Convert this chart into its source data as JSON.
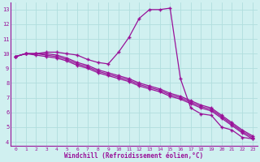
{
  "x": [
    0,
    1,
    2,
    3,
    4,
    5,
    6,
    7,
    8,
    9,
    10,
    11,
    12,
    13,
    14,
    15,
    16,
    17,
    18,
    19,
    20,
    21,
    22,
    23
  ],
  "curve1": [
    9.8,
    10.0,
    10.0,
    10.1,
    10.1,
    10.0,
    9.9,
    9.6,
    9.4,
    9.3,
    10.1,
    11.1,
    12.4,
    13.0,
    13.0,
    13.1,
    8.3,
    6.3,
    5.9,
    5.8,
    5.0,
    4.8,
    4.3,
    4.2
  ],
  "curve2": [
    9.8,
    10.0,
    10.0,
    10.0,
    9.9,
    9.7,
    9.4,
    9.2,
    8.9,
    8.7,
    8.5,
    8.3,
    8.0,
    7.8,
    7.6,
    7.3,
    7.1,
    6.8,
    6.5,
    6.3,
    5.8,
    5.3,
    4.8,
    4.4
  ],
  "curve3": [
    9.8,
    10.0,
    10.0,
    9.9,
    9.8,
    9.6,
    9.3,
    9.1,
    8.8,
    8.6,
    8.4,
    8.2,
    7.9,
    7.7,
    7.5,
    7.2,
    7.0,
    6.7,
    6.4,
    6.2,
    5.7,
    5.2,
    4.7,
    4.3
  ],
  "curve4": [
    9.8,
    10.0,
    9.9,
    9.8,
    9.7,
    9.5,
    9.2,
    9.0,
    8.7,
    8.5,
    8.3,
    8.1,
    7.8,
    7.6,
    7.4,
    7.1,
    6.9,
    6.6,
    6.3,
    6.1,
    5.6,
    5.1,
    4.6,
    4.2
  ],
  "line_color": "#991199",
  "bg_color": "#d0f0f0",
  "grid_color": "#b0dede",
  "xlabel": "Windchill (Refroidissement éolien,°C)",
  "ylim_min": 4,
  "ylim_max": 13,
  "xlim_min": 0,
  "xlim_max": 23
}
